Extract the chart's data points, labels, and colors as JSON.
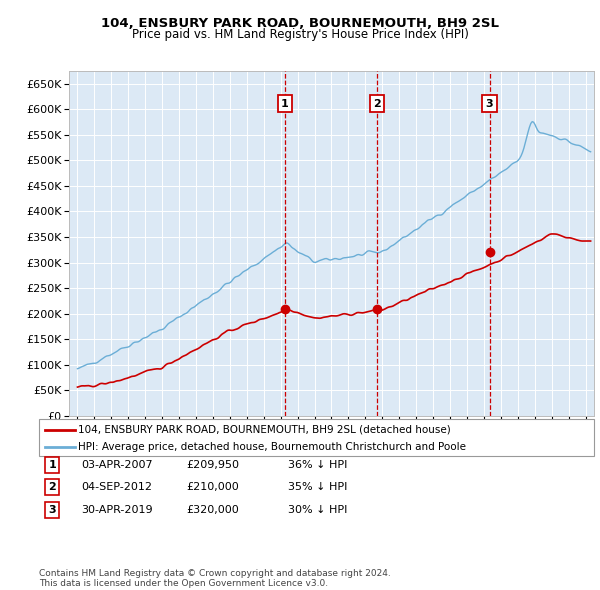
{
  "title": "104, ENSBURY PARK ROAD, BOURNEMOUTH, BH9 2SL",
  "subtitle": "Price paid vs. HM Land Registry's House Price Index (HPI)",
  "plot_bg_color": "#dce9f5",
  "ylim": [
    0,
    675000
  ],
  "yticks": [
    0,
    50000,
    100000,
    150000,
    200000,
    250000,
    300000,
    350000,
    400000,
    450000,
    500000,
    550000,
    600000,
    650000
  ],
  "xlim_start": 1994.5,
  "xlim_end": 2025.5,
  "sale_dates": [
    2007.25,
    2012.67,
    2019.33
  ],
  "sale_prices": [
    209950,
    210000,
    320000
  ],
  "sale_labels": [
    "1",
    "2",
    "3"
  ],
  "legend_entries": [
    "104, ENSBURY PARK ROAD, BOURNEMOUTH, BH9 2SL (detached house)",
    "HPI: Average price, detached house, Bournemouth Christchurch and Poole"
  ],
  "table_data": [
    [
      "1",
      "03-APR-2007",
      "£209,950",
      "36% ↓ HPI"
    ],
    [
      "2",
      "04-SEP-2012",
      "£210,000",
      "35% ↓ HPI"
    ],
    [
      "3",
      "30-APR-2019",
      "£320,000",
      "30% ↓ HPI"
    ]
  ],
  "footer": "Contains HM Land Registry data © Crown copyright and database right 2024.\nThis data is licensed under the Open Government Licence v3.0.",
  "hpi_color": "#6baed6",
  "price_color": "#cc0000",
  "vline_color": "#cc0000",
  "box_color": "#cc0000",
  "grid_color": "#ffffff"
}
